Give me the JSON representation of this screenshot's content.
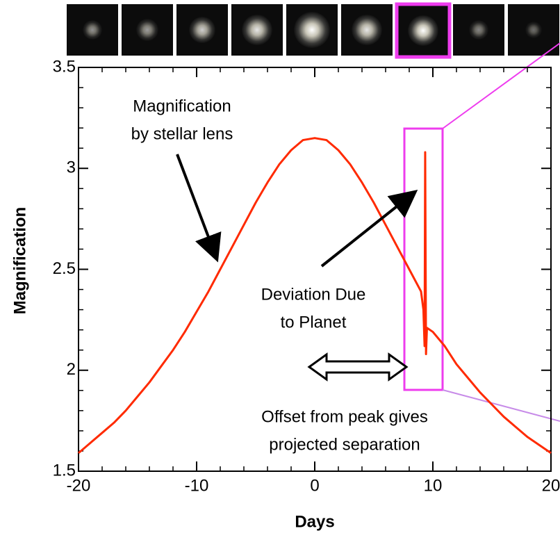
{
  "chart_data": {
    "type": "line",
    "x_label": "Days",
    "y_label": "Magnification",
    "x": [
      -20,
      -19,
      -18,
      -17,
      -16,
      -15,
      -14,
      -13,
      -12,
      -11,
      -10,
      -9,
      -8,
      -7,
      -6,
      -5,
      -4,
      -3,
      -2,
      -1,
      0,
      1,
      2,
      3,
      4,
      5,
      6,
      7,
      8,
      9,
      9.2,
      9.3,
      9.35,
      9.42,
      9.5,
      10,
      11,
      12,
      13,
      14,
      15,
      16,
      17,
      18,
      19,
      20
    ],
    "values": [
      1.59,
      1.64,
      1.69,
      1.74,
      1.8,
      1.87,
      1.94,
      2.02,
      2.1,
      2.19,
      2.29,
      2.39,
      2.5,
      2.61,
      2.72,
      2.83,
      2.93,
      3.02,
      3.09,
      3.14,
      3.15,
      3.14,
      3.09,
      3.02,
      2.93,
      2.83,
      2.72,
      2.61,
      2.5,
      2.39,
      2.3,
      2.12,
      3.08,
      2.08,
      2.21,
      2.19,
      2.12,
      2.03,
      1.96,
      1.89,
      1.83,
      1.77,
      1.72,
      1.67,
      1.63,
      1.59
    ],
    "color": "#ff2a00",
    "xlim": [
      -20,
      20
    ],
    "xticks": [
      -20,
      -10,
      0,
      10,
      20
    ],
    "ylim": [
      1.5,
      3.5
    ],
    "yticks": [
      1.5,
      2,
      2.5,
      3,
      3.5
    ],
    "annotations": [
      {
        "lines": [
          "Magnification",
          "by stellar lens"
        ]
      },
      {
        "lines": [
          "Deviation Due",
          "to Planet"
        ]
      },
      {
        "lines": [
          "Offset from peak gives",
          "projected separation"
        ]
      }
    ]
  }
}
